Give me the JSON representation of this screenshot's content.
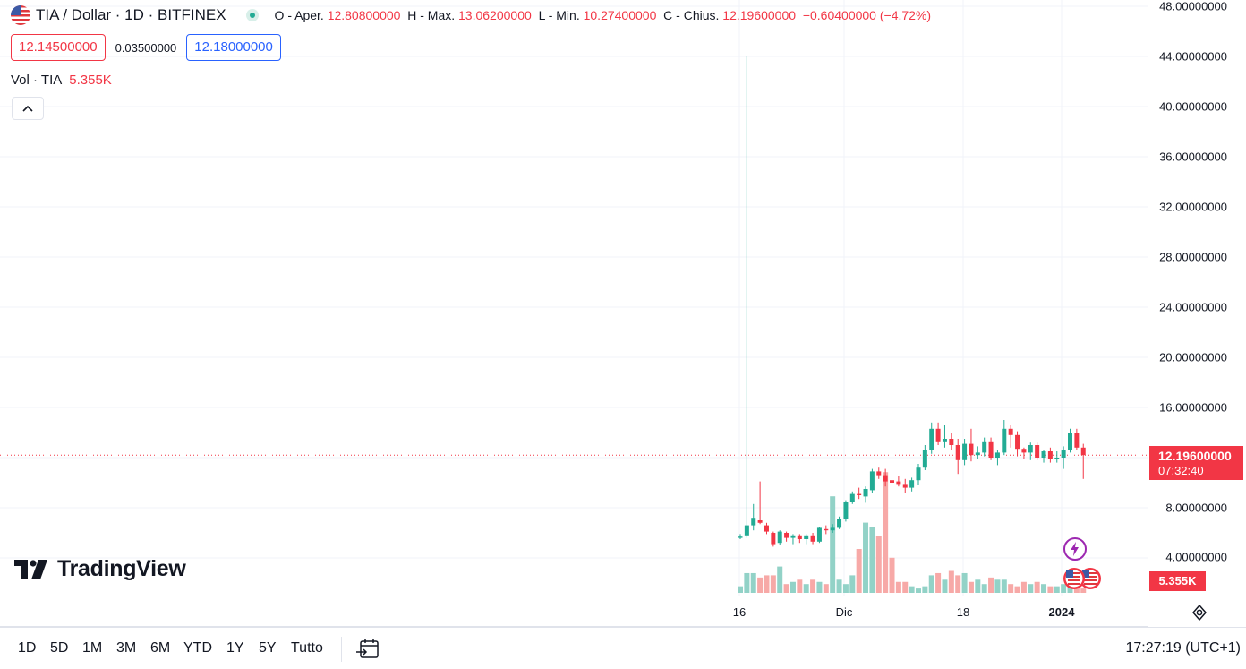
{
  "legend": {
    "symbol": "TIA / Dollar · 1D · BITFINEX",
    "open_label": "O - Aper.",
    "open": "12.80800000",
    "high_label": "H - Max.",
    "high": "13.06200000",
    "low_label": "L - Min.",
    "low": "10.27400000",
    "close_label": "C - Chius.",
    "close": "12.19600000",
    "change": "−0.60400000 (−4.72%)"
  },
  "quote": {
    "sell": "12.14500000",
    "spread": "0.03500000",
    "buy": "12.18000000"
  },
  "volume_legend": {
    "label": "Vol · TIA",
    "value": "5.355K"
  },
  "logo": {
    "text": "TradingView"
  },
  "price_axis": {
    "ticks": [
      "48.00000000",
      "44.00000000",
      "40.00000000",
      "36.00000000",
      "32.00000000",
      "28.00000000",
      "24.00000000",
      "20.00000000",
      "16.00000000",
      "8.00000000",
      "4.00000000"
    ],
    "last_price": "12.19600000",
    "countdown": "07:32:40",
    "volume_label": "5.355K"
  },
  "time_axis": {
    "ticks": [
      "16",
      "Dic",
      "18",
      "2024"
    ]
  },
  "bottom_bar": {
    "ranges": [
      "1D",
      "5D",
      "1M",
      "3M",
      "6M",
      "YTD",
      "1Y",
      "5Y",
      "Tutto"
    ],
    "clock": "17:27:19 (UTC+1)"
  },
  "colors": {
    "up": "#22ab94",
    "down": "#f23645",
    "up_volume": "#92d2c7",
    "down_volume": "#f7a9a7",
    "accent": "#2962ff"
  },
  "chart_data": {
    "type": "candlestick",
    "price_range": [
      0,
      49
    ],
    "candles": [
      {
        "o": 5.6,
        "h": 5.9,
        "l": 5.5,
        "c": 5.7
      },
      {
        "o": 5.8,
        "h": 44.0,
        "l": 5.6,
        "c": 6.6
      },
      {
        "o": 6.6,
        "h": 8.3,
        "l": 6.2,
        "c": 7.2
      },
      {
        "o": 7.0,
        "h": 10.1,
        "l": 6.7,
        "c": 6.8
      },
      {
        "o": 6.6,
        "h": 6.8,
        "l": 5.9,
        "c": 6.1
      },
      {
        "o": 6.0,
        "h": 6.1,
        "l": 4.9,
        "c": 5.1
      },
      {
        "o": 5.2,
        "h": 6.2,
        "l": 5.0,
        "c": 6.1
      },
      {
        "o": 6.0,
        "h": 6.1,
        "l": 5.3,
        "c": 5.6
      },
      {
        "o": 5.6,
        "h": 5.9,
        "l": 5.1,
        "c": 5.8
      },
      {
        "o": 5.8,
        "h": 5.9,
        "l": 5.2,
        "c": 5.5
      },
      {
        "o": 5.5,
        "h": 5.9,
        "l": 5.1,
        "c": 5.8
      },
      {
        "o": 5.8,
        "h": 6.0,
        "l": 5.1,
        "c": 5.3
      },
      {
        "o": 5.3,
        "h": 6.5,
        "l": 5.2,
        "c": 6.4
      },
      {
        "o": 6.3,
        "h": 6.6,
        "l": 5.9,
        "c": 6.2
      },
      {
        "o": 6.2,
        "h": 6.7,
        "l": 6.0,
        "c": 6.4
      },
      {
        "o": 6.4,
        "h": 7.3,
        "l": 6.3,
        "c": 7.1
      },
      {
        "o": 7.1,
        "h": 8.6,
        "l": 6.9,
        "c": 8.5
      },
      {
        "o": 8.5,
        "h": 9.3,
        "l": 8.3,
        "c": 9.1
      },
      {
        "o": 9.1,
        "h": 9.6,
        "l": 8.7,
        "c": 9.0
      },
      {
        "o": 8.9,
        "h": 9.7,
        "l": 8.4,
        "c": 9.5
      },
      {
        "o": 9.4,
        "h": 11.1,
        "l": 9.2,
        "c": 10.9
      },
      {
        "o": 10.9,
        "h": 11.2,
        "l": 10.3,
        "c": 10.6
      },
      {
        "o": 10.6,
        "h": 11.1,
        "l": 9.7,
        "c": 10.1
      },
      {
        "o": 10.2,
        "h": 10.9,
        "l": 9.8,
        "c": 10.0
      },
      {
        "o": 10.1,
        "h": 10.5,
        "l": 9.7,
        "c": 9.9
      },
      {
        "o": 9.9,
        "h": 10.3,
        "l": 9.2,
        "c": 9.6
      },
      {
        "o": 9.6,
        "h": 10.4,
        "l": 9.3,
        "c": 10.2
      },
      {
        "o": 10.2,
        "h": 11.5,
        "l": 9.8,
        "c": 11.2
      },
      {
        "o": 11.2,
        "h": 13.0,
        "l": 11.0,
        "c": 12.6
      },
      {
        "o": 12.6,
        "h": 14.8,
        "l": 12.3,
        "c": 14.3
      },
      {
        "o": 14.3,
        "h": 14.8,
        "l": 13.0,
        "c": 13.3
      },
      {
        "o": 13.3,
        "h": 14.6,
        "l": 12.8,
        "c": 13.5
      },
      {
        "o": 13.5,
        "h": 14.0,
        "l": 12.6,
        "c": 13.0
      },
      {
        "o": 13.0,
        "h": 13.5,
        "l": 10.7,
        "c": 11.8
      },
      {
        "o": 11.8,
        "h": 13.5,
        "l": 11.4,
        "c": 13.1
      },
      {
        "o": 13.1,
        "h": 14.3,
        "l": 11.7,
        "c": 12.2
      },
      {
        "o": 12.2,
        "h": 12.9,
        "l": 11.9,
        "c": 12.4
      },
      {
        "o": 12.4,
        "h": 13.6,
        "l": 12.1,
        "c": 13.3
      },
      {
        "o": 13.3,
        "h": 13.6,
        "l": 11.8,
        "c": 12.0
      },
      {
        "o": 12.0,
        "h": 12.6,
        "l": 11.4,
        "c": 12.4
      },
      {
        "o": 12.4,
        "h": 15.0,
        "l": 12.2,
        "c": 14.3
      },
      {
        "o": 14.3,
        "h": 14.6,
        "l": 12.8,
        "c": 13.8
      },
      {
        "o": 13.8,
        "h": 14.1,
        "l": 12.1,
        "c": 12.7
      },
      {
        "o": 12.7,
        "h": 12.8,
        "l": 11.9,
        "c": 12.4
      },
      {
        "o": 12.4,
        "h": 13.2,
        "l": 11.8,
        "c": 13.0
      },
      {
        "o": 13.0,
        "h": 13.2,
        "l": 11.8,
        "c": 12.0
      },
      {
        "o": 12.0,
        "h": 12.6,
        "l": 11.6,
        "c": 12.5
      },
      {
        "o": 12.5,
        "h": 12.8,
        "l": 11.6,
        "c": 11.9
      },
      {
        "o": 11.9,
        "h": 12.5,
        "l": 11.6,
        "c": 12.0
      },
      {
        "o": 12.0,
        "h": 12.9,
        "l": 11.1,
        "c": 12.6
      },
      {
        "o": 12.6,
        "h": 14.3,
        "l": 12.4,
        "c": 14.0
      },
      {
        "o": 14.0,
        "h": 14.3,
        "l": 12.6,
        "c": 12.8
      },
      {
        "o": 12.8,
        "h": 13.1,
        "l": 10.3,
        "c": 12.2
      }
    ],
    "volume_range": [
      0,
      70
    ],
    "volume": [
      3,
      9,
      9,
      7,
      8,
      8,
      12,
      4,
      5,
      6,
      4,
      6,
      5,
      4,
      44,
      6,
      4,
      8,
      20,
      32,
      30,
      26,
      55,
      16,
      5,
      5,
      3,
      2,
      3,
      8,
      9,
      6,
      10,
      8,
      9,
      5,
      6,
      4,
      7,
      6,
      6,
      4,
      3,
      5,
      4,
      5,
      4,
      3,
      3,
      4,
      6,
      3,
      2
    ]
  }
}
